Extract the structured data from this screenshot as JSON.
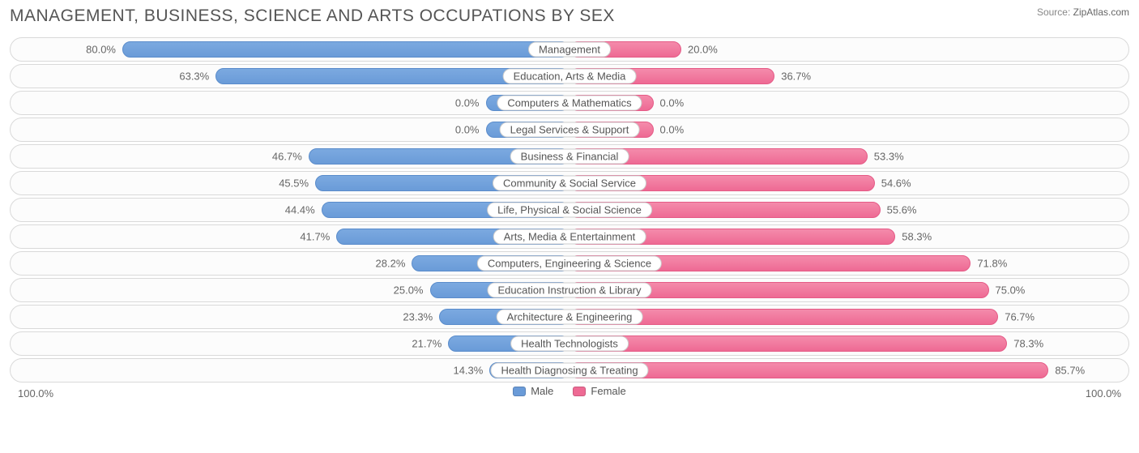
{
  "title": "MANAGEMENT, BUSINESS, SCIENCE AND ARTS OCCUPATIONS BY SEX",
  "source_label": "Source:",
  "source_value": "ZipAtlas.com",
  "axis_left": "100.0%",
  "axis_right": "100.0%",
  "legend": {
    "male": "Male",
    "female": "Female"
  },
  "colors": {
    "male_fill_top": "#7ba9e0",
    "male_fill_bottom": "#6a9bd8",
    "male_border": "#5a8ccb",
    "female_fill_top": "#f48bab",
    "female_fill_bottom": "#ee6a94",
    "female_border": "#e55a86",
    "track_border": "#d9d9d9",
    "track_bg": "#fcfcfc",
    "text": "#666",
    "title_text": "#555",
    "pill_border": "#ccc",
    "background": "#ffffff"
  },
  "null_bar_width_pct": 15,
  "rows": [
    {
      "category": "Management",
      "male_pct": 80.0,
      "female_pct": 20.0,
      "male_label": "80.0%",
      "female_label": "20.0%"
    },
    {
      "category": "Education, Arts & Media",
      "male_pct": 63.3,
      "female_pct": 36.7,
      "male_label": "63.3%",
      "female_label": "36.7%"
    },
    {
      "category": "Computers & Mathematics",
      "male_pct": null,
      "female_pct": null,
      "male_label": "0.0%",
      "female_label": "0.0%"
    },
    {
      "category": "Legal Services & Support",
      "male_pct": null,
      "female_pct": null,
      "male_label": "0.0%",
      "female_label": "0.0%"
    },
    {
      "category": "Business & Financial",
      "male_pct": 46.7,
      "female_pct": 53.3,
      "male_label": "46.7%",
      "female_label": "53.3%"
    },
    {
      "category": "Community & Social Service",
      "male_pct": 45.5,
      "female_pct": 54.6,
      "male_label": "45.5%",
      "female_label": "54.6%"
    },
    {
      "category": "Life, Physical & Social Science",
      "male_pct": 44.4,
      "female_pct": 55.6,
      "male_label": "44.4%",
      "female_label": "55.6%"
    },
    {
      "category": "Arts, Media & Entertainment",
      "male_pct": 41.7,
      "female_pct": 58.3,
      "male_label": "41.7%",
      "female_label": "58.3%"
    },
    {
      "category": "Computers, Engineering & Science",
      "male_pct": 28.2,
      "female_pct": 71.8,
      "male_label": "28.2%",
      "female_label": "71.8%"
    },
    {
      "category": "Education Instruction & Library",
      "male_pct": 25.0,
      "female_pct": 75.0,
      "male_label": "25.0%",
      "female_label": "75.0%"
    },
    {
      "category": "Architecture & Engineering",
      "male_pct": 23.3,
      "female_pct": 76.7,
      "male_label": "23.3%",
      "female_label": "76.7%"
    },
    {
      "category": "Health Technologists",
      "male_pct": 21.7,
      "female_pct": 78.3,
      "male_label": "21.7%",
      "female_label": "78.3%"
    },
    {
      "category": "Health Diagnosing & Treating",
      "male_pct": 14.3,
      "female_pct": 85.7,
      "male_label": "14.3%",
      "female_label": "85.7%"
    }
  ]
}
